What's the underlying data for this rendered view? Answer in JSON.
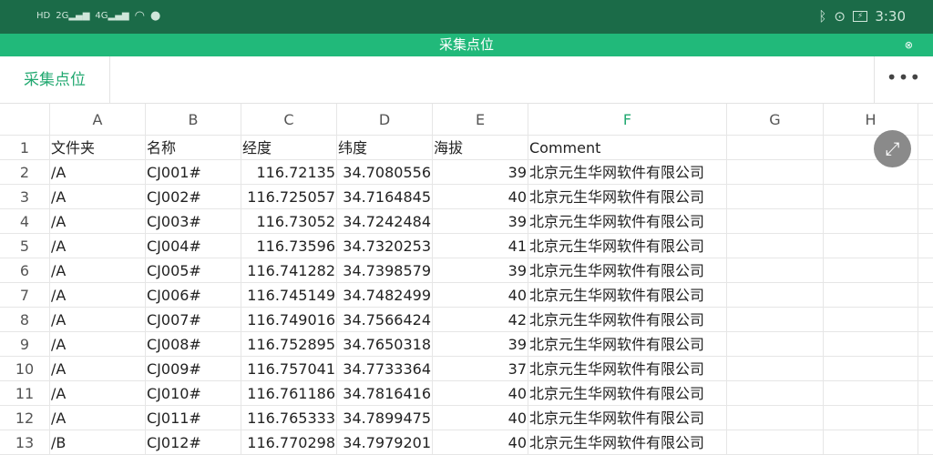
{
  "status": {
    "left_icons": [
      "hd-icon",
      "signal-2g-icon",
      "signal-4g-icon",
      "wifi-icon",
      "qq-icon"
    ],
    "time": "3:30",
    "right_icons": [
      "bluetooth-icon",
      "location-icon",
      "battery-charging-icon"
    ]
  },
  "title": "采集点位",
  "toolbar": {
    "tab_label": "采集点位",
    "more_label": "•••"
  },
  "columns": [
    "A",
    "B",
    "C",
    "D",
    "E",
    "F",
    "G",
    "H"
  ],
  "selected_column": "F",
  "accent": "#21b97a",
  "rows": [
    [
      "1",
      "文件夹",
      "名称",
      "经度",
      "纬度",
      "海拔",
      "Comment"
    ],
    [
      "2",
      "/A",
      "CJ001#",
      "116.72135",
      "34.7080556",
      "39",
      "北京元生华网软件有限公司"
    ],
    [
      "3",
      "/A",
      "CJ002#",
      "116.725057",
      "34.7164845",
      "40",
      "北京元生华网软件有限公司"
    ],
    [
      "4",
      "/A",
      "CJ003#",
      "116.73052",
      "34.7242484",
      "39",
      "北京元生华网软件有限公司"
    ],
    [
      "5",
      "/A",
      "CJ004#",
      "116.73596",
      "34.7320253",
      "41",
      "北京元生华网软件有限公司"
    ],
    [
      "6",
      "/A",
      "CJ005#",
      "116.741282",
      "34.7398579",
      "39",
      "北京元生华网软件有限公司"
    ],
    [
      "7",
      "/A",
      "CJ006#",
      "116.745149",
      "34.7482499",
      "40",
      "北京元生华网软件有限公司"
    ],
    [
      "8",
      "/A",
      "CJ007#",
      "116.749016",
      "34.7566424",
      "42",
      "北京元生华网软件有限公司"
    ],
    [
      "9",
      "/A",
      "CJ008#",
      "116.752895",
      "34.7650318",
      "39",
      "北京元生华网软件有限公司"
    ],
    [
      "10",
      "/A",
      "CJ009#",
      "116.757041",
      "34.7733364",
      "37",
      "北京元生华网软件有限公司"
    ],
    [
      "11",
      "/A",
      "CJ010#",
      "116.761186",
      "34.7816416",
      "40",
      "北京元生华网软件有限公司"
    ],
    [
      "12",
      "/A",
      "CJ011#",
      "116.765333",
      "34.7899475",
      "40",
      "北京元生华网软件有限公司"
    ],
    [
      "13",
      "/B",
      "CJ012#",
      "116.770298",
      "34.7979201",
      "40",
      "北京元生华网软件有限公司"
    ]
  ]
}
